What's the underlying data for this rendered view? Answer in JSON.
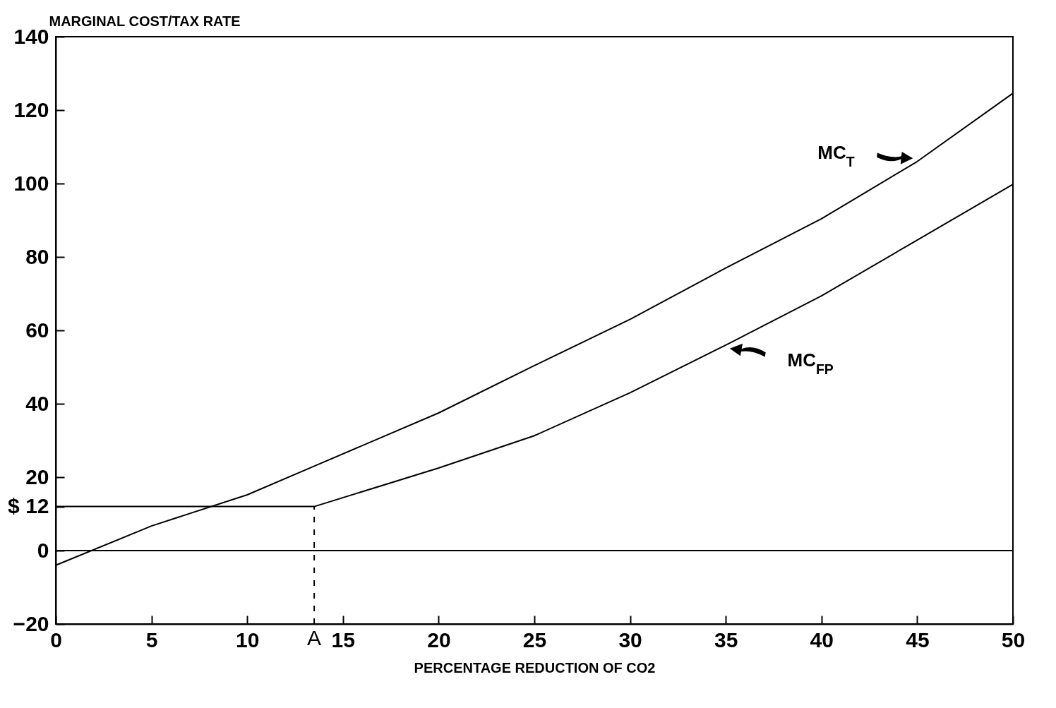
{
  "chart_data": {
    "type": "line",
    "xlabel": "PERCENTAGE REDUCTION OF CO2",
    "ylabel": "MARGINAL COST/TAX RATE",
    "xlim": [
      0,
      50
    ],
    "xticks": [
      0,
      5,
      10,
      15,
      20,
      25,
      30,
      35,
      40,
      45,
      50
    ],
    "ylim": [
      -20,
      140
    ],
    "yticks": [
      -20,
      0,
      {
        "value": 12,
        "label": "$ 12"
      },
      20,
      40,
      60,
      80,
      100,
      120,
      140
    ],
    "series": [
      {
        "color": "#000000",
        "x": [
          0,
          5,
          10,
          13.5,
          20,
          25,
          30,
          35,
          40,
          45,
          50
        ],
        "values": [
          -4,
          6.7,
          15.2,
          23,
          37.5,
          50.4,
          63,
          77,
          90.4,
          106,
          124.6
        ]
      },
      {
        "color": "#000000",
        "x": [
          0,
          13.5,
          20,
          25,
          30,
          35,
          40,
          45,
          50
        ],
        "values": [
          12,
          12,
          22.5,
          31.3,
          43,
          56,
          69.4,
          84.6,
          99.8
        ]
      }
    ],
    "ref_lines": [
      {
        "axis": "y",
        "value": 0
      },
      {
        "axis": "x",
        "value": 13.5,
        "label": "A",
        "line_style": "dashed"
      }
    ],
    "annotations": [
      "MC$_{T}$",
      "MC$_{FP}$"
    ],
    "grid": false,
    "legend": false
  }
}
